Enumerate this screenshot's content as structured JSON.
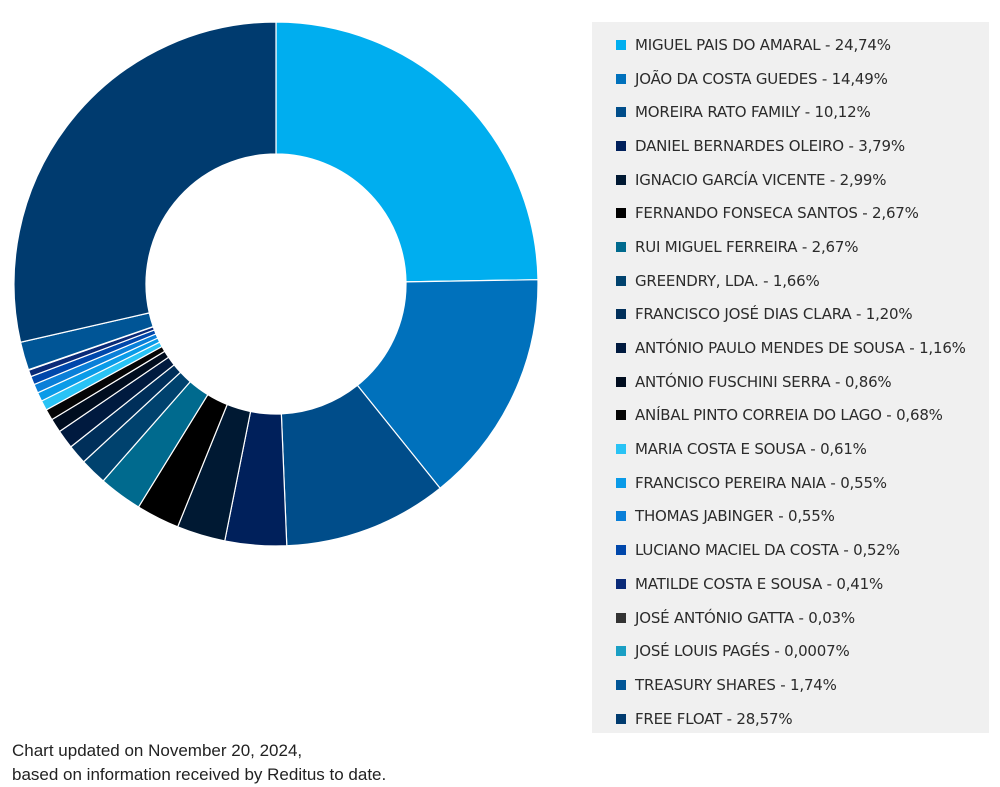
{
  "chart_data": {
    "type": "pie",
    "subtype": "donut",
    "slices": [
      {
        "label": "MIGUEL PAIS DO AMARAL - 24,74%",
        "value": 24.74,
        "color": "#00aeef"
      },
      {
        "label": "JOÃO DA COSTA GUEDES - 14,49%",
        "value": 14.49,
        "color": "#0071bc"
      },
      {
        "label": "MOREIRA RATO FAMILY - 10,12%",
        "value": 10.12,
        "color": "#004d8a"
      },
      {
        "label": "DANIEL BERNARDES OLEIRO - 3,79%",
        "value": 3.79,
        "color": "#00205b"
      },
      {
        "label": "IGNACIO GARCÍA VICENTE - 2,99%",
        "value": 2.99,
        "color": "#001933"
      },
      {
        "label": "FERNANDO FONSECA SANTOS - 2,67%",
        "value": 2.67,
        "color": "#000000"
      },
      {
        "label": "RUI MIGUEL FERREIRA - 2,67%",
        "value": 2.67,
        "color": "#006a8e"
      },
      {
        "label": "GREENDRY, LDA. - 1,66%",
        "value": 1.66,
        "color": "#00426e"
      },
      {
        "label": "FRANCISCO JOSÉ DIAS CLARA - 1,20%",
        "value": 1.2,
        "color": "#002f5a"
      },
      {
        "label": "ANTÓNIO PAULO MENDES DE SOUSA - 1,16%",
        "value": 1.16,
        "color": "#001a3f"
      },
      {
        "label": "ANTÓNIO FUSCHINI SERRA - 0,86%",
        "value": 0.86,
        "color": "#000d1f"
      },
      {
        "label": "ANÍBAL PINTO CORREIA DO LAGO - 0,68%",
        "value": 0.68,
        "color": "#050505"
      },
      {
        "label": "MARIA COSTA E SOUSA - 0,61%",
        "value": 0.61,
        "color": "#29c3f5"
      },
      {
        "label": "FRANCISCO PEREIRA NAIA - 0,55%",
        "value": 0.55,
        "color": "#0a9be8"
      },
      {
        "label": "THOMAS JABINGER - 0,55%",
        "value": 0.55,
        "color": "#0a7fd8"
      },
      {
        "label": "LUCIANO MACIEL DA COSTA - 0,52%",
        "value": 0.52,
        "color": "#0047ab"
      },
      {
        "label": "MATILDE COSTA E SOUSA - 0,41%",
        "value": 0.41,
        "color": "#0a2a78"
      },
      {
        "label": "JOSÉ ANTÓNIO GATTA - 0,03%",
        "value": 0.03,
        "color": "#333333"
      },
      {
        "label": "JOSÉ LOUIS PAGÉS - 0,0007%",
        "value": 0.0007,
        "color": "#1a9fc4"
      },
      {
        "label": "TREASURY SHARES - 1,74%",
        "value": 1.74,
        "color": "#005596"
      },
      {
        "label": "FREE FLOAT - 28,57%",
        "value": 28.57,
        "color": "#003b6f"
      }
    ],
    "legend_position": "right",
    "start_angle": "top",
    "direction": "clockwise"
  },
  "footnote": {
    "line1": "Chart updated on November 20, 2024,",
    "line2": "based on information received by Reditus to date."
  }
}
